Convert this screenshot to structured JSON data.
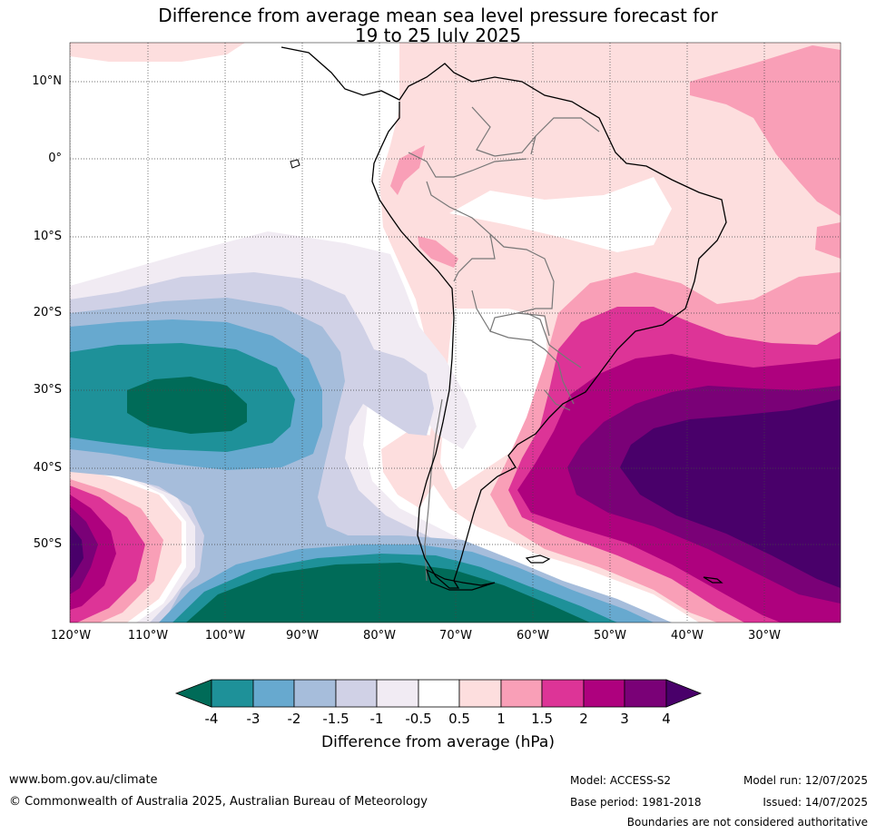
{
  "title": {
    "line1": "Difference from average mean sea level pressure forecast for",
    "line2": "19 to 25 July 2025"
  },
  "map": {
    "region": "South America",
    "lat_labels": [
      "10°N",
      "0°",
      "10°S",
      "20°S",
      "30°S",
      "40°S",
      "50°S"
    ],
    "lon_labels": [
      "120°W",
      "110°W",
      "100°W",
      "90°W",
      "80°W",
      "70°W",
      "60°W",
      "50°W",
      "40°W",
      "30°W"
    ],
    "extent": {
      "lon_min": -120,
      "lon_max": -20,
      "lat_min": -60,
      "lat_max": 15
    },
    "grid": true,
    "colors": {
      "lt_-4": "#006b58",
      "-4_-3": "#1e9199",
      "-3_-2": "#67a9cf",
      "-2_-1.5": "#a6bddb",
      "-1.5_-1": "#d0d1e6",
      "-1_-0.5": "#f1ebf3",
      "-0.5_0.5": "#ffffff",
      "0.5_1": "#fddede",
      "1_1.5": "#f99fb7",
      "1.5_2": "#dd3497",
      "2_3": "#ae017e",
      "3_4": "#7a0177",
      "gt_4": "#49006a"
    }
  },
  "colorbar": {
    "ticks": [
      "-4",
      "-3",
      "-2",
      "-1.5",
      "-1",
      "-0.5",
      "0.5",
      "1",
      "1.5",
      "2",
      "3",
      "4"
    ],
    "colors": [
      "#006b58",
      "#1e9199",
      "#67a9cf",
      "#a6bddb",
      "#d0d1e6",
      "#f1ebf3",
      "#ffffff",
      "#fddede",
      "#f99fb7",
      "#dd3497",
      "#ae017e",
      "#7a0177",
      "#49006a"
    ],
    "label": "Difference from average (hPa)"
  },
  "footer": {
    "website": "www.bom.gov.au/climate",
    "copyright": "© Commonwealth of Australia 2025, Australian Bureau of Meteorology",
    "model": "Model: ACCESS-S2",
    "base_period": "Base period: 1981-2018",
    "model_run": "Model run: 12/07/2025",
    "issued": "Issued: 14/07/2025",
    "disclaimer": "Boundaries are not considered authoritative"
  }
}
